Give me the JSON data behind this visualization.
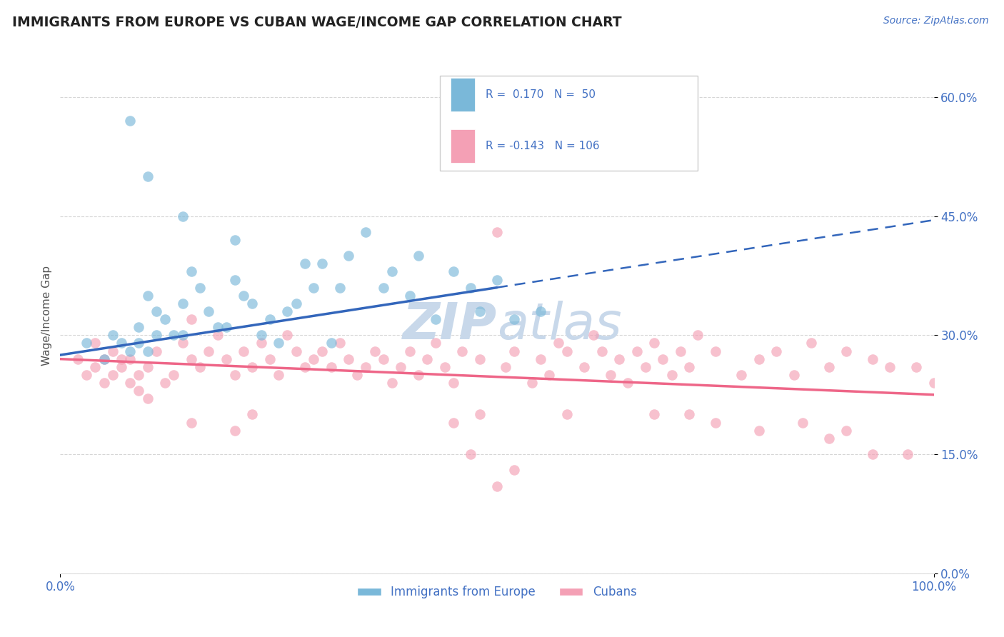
{
  "title": "IMMIGRANTS FROM EUROPE VS CUBAN WAGE/INCOME GAP CORRELATION CHART",
  "source": "Source: ZipAtlas.com",
  "ylabel": "Wage/Income Gap",
  "xlim": [
    0,
    100
  ],
  "ylim": [
    0,
    65
  ],
  "yticks": [
    0,
    15,
    30,
    45,
    60
  ],
  "ytick_labels": [
    "0.0%",
    "15.0%",
    "30.0%",
    "45.0%",
    "60.0%"
  ],
  "xtick_labels": [
    "0.0%",
    "100.0%"
  ],
  "legend_labels": [
    "Immigrants from Europe",
    "Cubans"
  ],
  "R_blue": 0.17,
  "N_blue": 50,
  "R_pink": -0.143,
  "N_pink": 106,
  "blue_color": "#7ab8d9",
  "pink_color": "#f4a0b5",
  "blue_line_color": "#3366bb",
  "pink_line_color": "#ee6688",
  "grid_color": "#cccccc",
  "title_color": "#222222",
  "axis_color": "#4472c4",
  "watermark_color": "#c8d8ea",
  "background_color": "#ffffff",
  "blue_line_x0": 0,
  "blue_line_y0": 27.5,
  "blue_line_x1": 100,
  "blue_line_y1": 44.5,
  "blue_solid_end_x": 50,
  "pink_line_x0": 0,
  "pink_line_y0": 27.0,
  "pink_line_x1": 100,
  "pink_line_y1": 22.5,
  "blue_x": [
    3,
    5,
    6,
    7,
    8,
    9,
    9,
    10,
    10,
    11,
    11,
    12,
    13,
    14,
    14,
    15,
    16,
    17,
    18,
    19,
    20,
    21,
    22,
    23,
    24,
    25,
    26,
    27,
    28,
    29,
    30,
    31,
    32,
    33,
    35,
    37,
    38,
    40,
    41,
    43,
    45,
    47,
    48,
    50,
    52,
    55,
    8,
    10,
    14,
    20
  ],
  "blue_y": [
    29,
    27,
    30,
    29,
    28,
    31,
    29,
    35,
    28,
    33,
    30,
    32,
    30,
    34,
    30,
    38,
    36,
    33,
    31,
    31,
    37,
    35,
    34,
    30,
    32,
    29,
    33,
    34,
    39,
    36,
    39,
    29,
    36,
    40,
    43,
    36,
    38,
    35,
    40,
    32,
    38,
    36,
    33,
    37,
    32,
    33,
    57,
    50,
    45,
    42
  ],
  "pink_x": [
    2,
    3,
    4,
    4,
    5,
    5,
    6,
    6,
    7,
    7,
    8,
    8,
    9,
    9,
    10,
    10,
    11,
    12,
    13,
    14,
    15,
    15,
    16,
    17,
    18,
    19,
    20,
    21,
    22,
    23,
    24,
    25,
    26,
    27,
    28,
    29,
    30,
    31,
    32,
    33,
    34,
    35,
    36,
    37,
    38,
    39,
    40,
    41,
    42,
    43,
    44,
    45,
    46,
    48,
    50,
    51,
    52,
    54,
    55,
    56,
    57,
    58,
    60,
    61,
    62,
    63,
    64,
    65,
    66,
    67,
    68,
    69,
    70,
    71,
    72,
    73,
    75,
    78,
    80,
    82,
    84,
    86,
    88,
    90,
    93,
    95,
    98,
    100,
    48,
    45,
    22,
    20,
    15,
    50,
    58,
    68,
    72,
    75,
    80,
    85,
    88,
    90,
    93,
    97,
    47,
    52
  ],
  "pink_y": [
    27,
    25,
    26,
    29,
    27,
    24,
    28,
    25,
    27,
    26,
    24,
    27,
    25,
    23,
    22,
    26,
    28,
    24,
    25,
    29,
    27,
    32,
    26,
    28,
    30,
    27,
    25,
    28,
    26,
    29,
    27,
    25,
    30,
    28,
    26,
    27,
    28,
    26,
    29,
    27,
    25,
    26,
    28,
    27,
    24,
    26,
    28,
    25,
    27,
    29,
    26,
    24,
    28,
    27,
    43,
    26,
    28,
    24,
    27,
    25,
    29,
    28,
    26,
    30,
    28,
    25,
    27,
    24,
    28,
    26,
    29,
    27,
    25,
    28,
    26,
    30,
    28,
    25,
    27,
    28,
    25,
    29,
    26,
    28,
    27,
    26,
    26,
    24,
    20,
    19,
    20,
    18,
    19,
    11,
    20,
    20,
    20,
    19,
    18,
    19,
    17,
    18,
    15,
    15,
    15,
    13
  ]
}
